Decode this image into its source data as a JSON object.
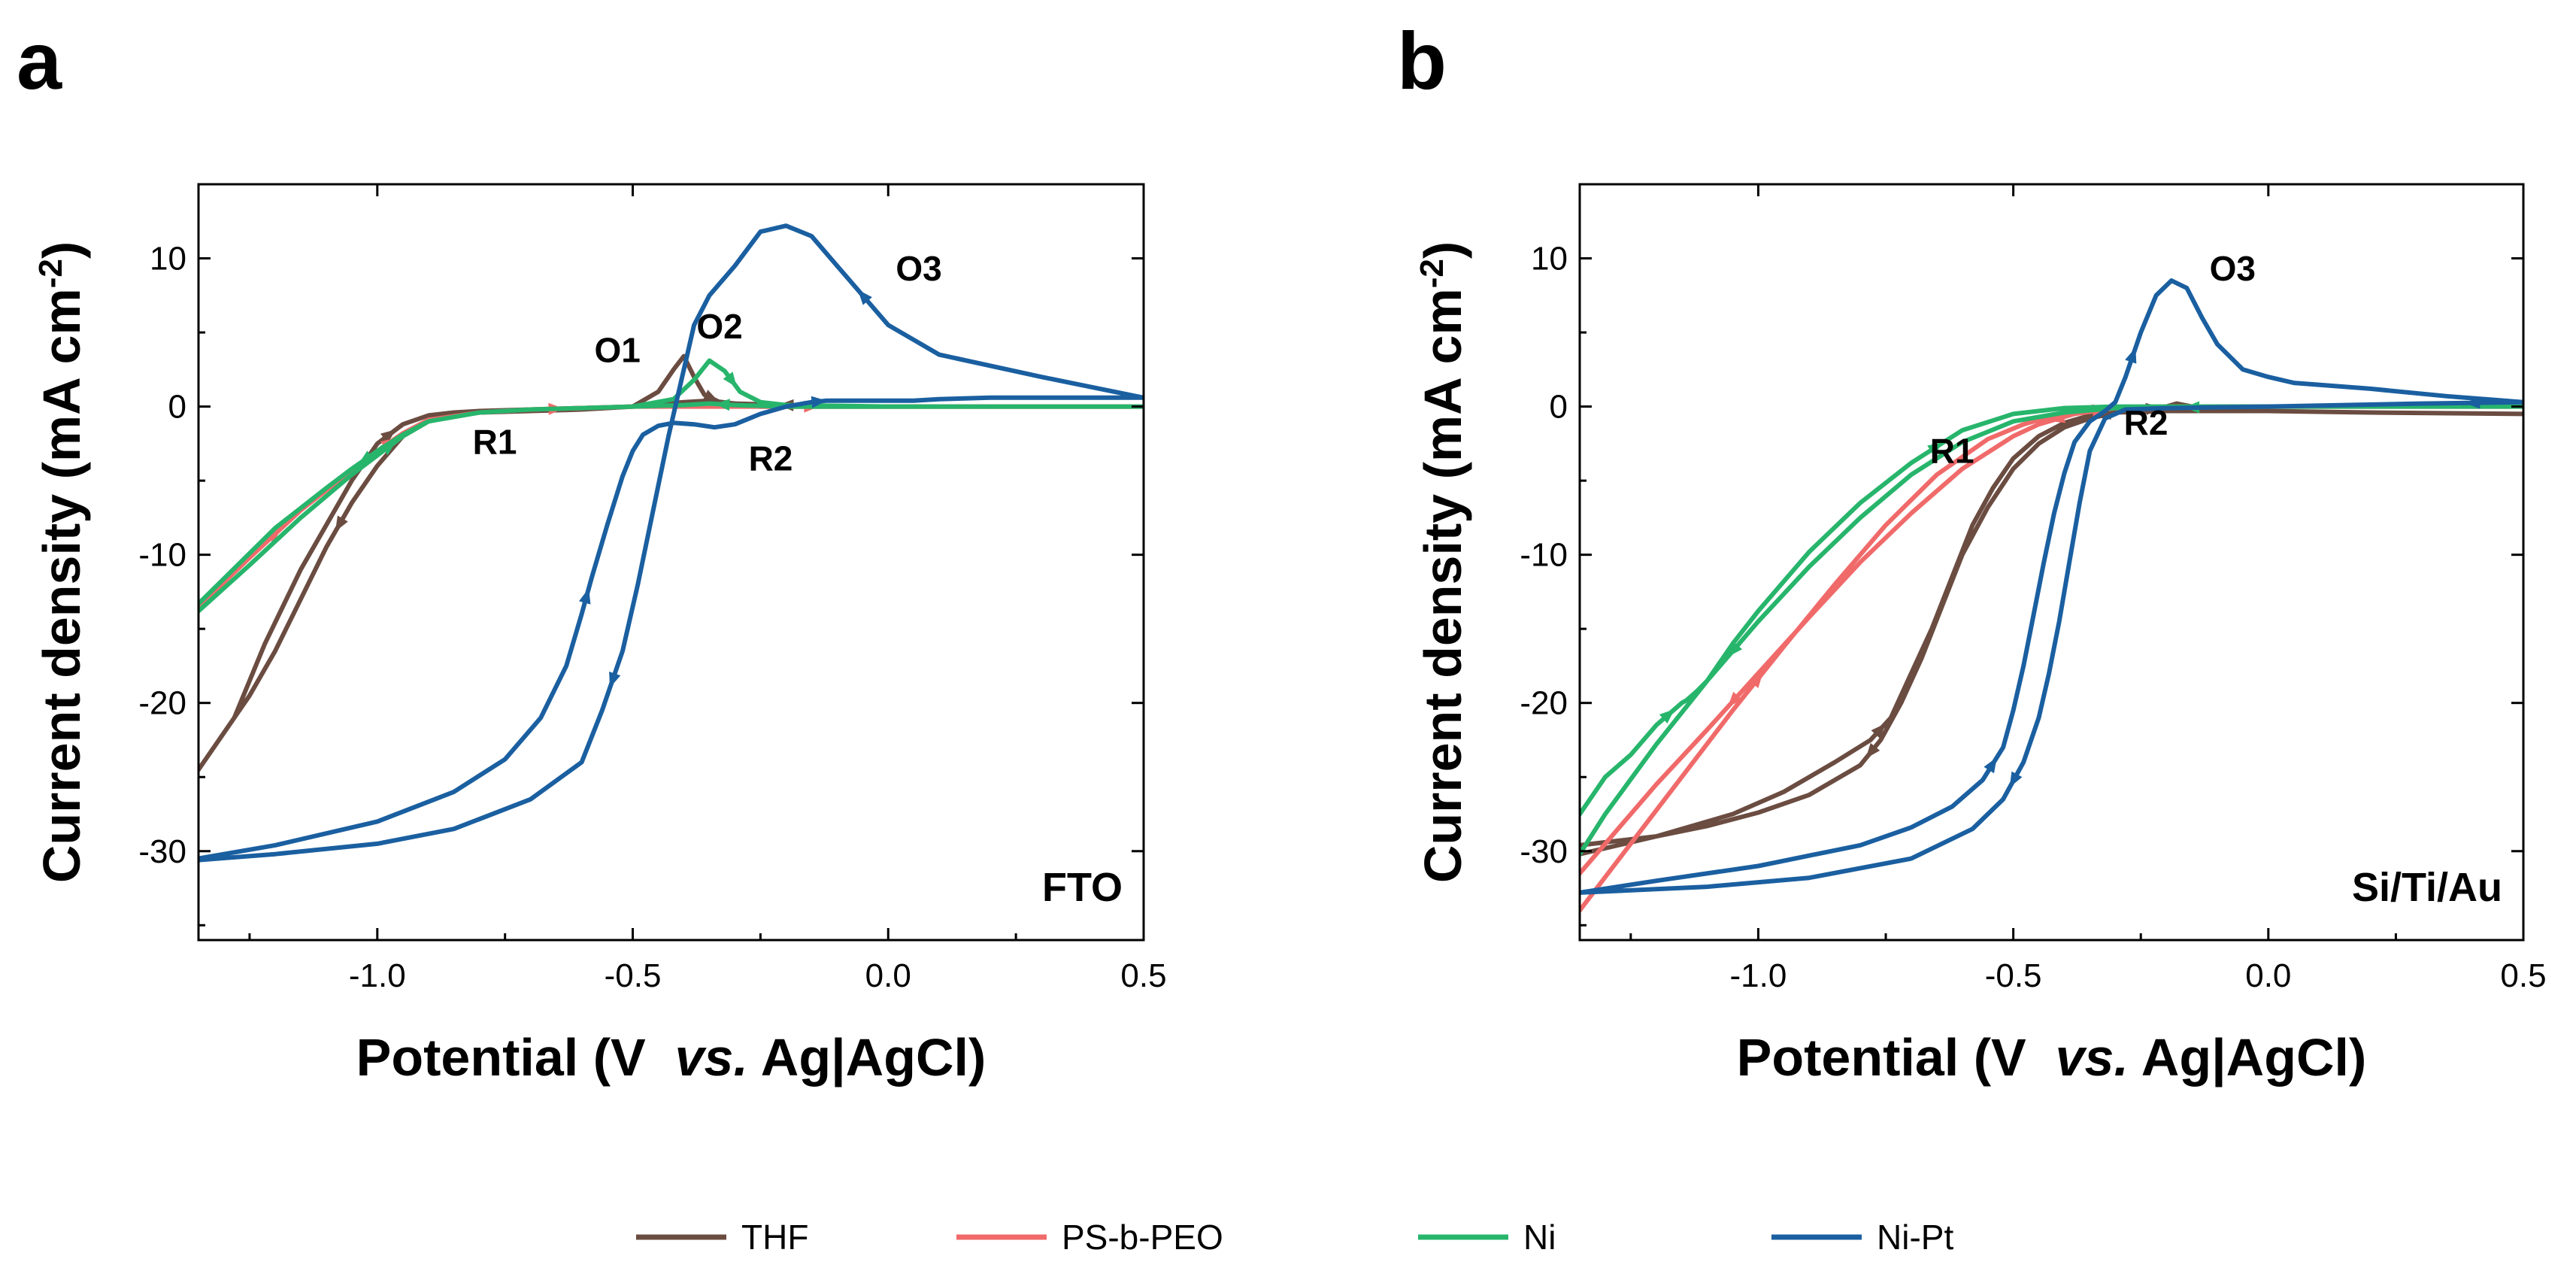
{
  "chart_data": [
    {
      "panel": "a",
      "type": "line",
      "xlabel_parts": [
        "Potential (",
        "V  ",
        "vs.",
        " Ag|AgCl)"
      ],
      "ylabel": "Current density (mA cm",
      "ylabel_sup": "-2",
      "ylabel_close": ")",
      "xlim": [
        -1.35,
        0.5
      ],
      "ylim": [
        -36,
        15
      ],
      "xticks": [
        -1.0,
        -0.5,
        0.0,
        0.5
      ],
      "xtick_labels": [
        "-1.0",
        "-0.5",
        "0.0",
        "0.5"
      ],
      "yticks": [
        10,
        0,
        -10,
        -20,
        -30
      ],
      "ytick_labels": [
        "10",
        "0",
        "-10",
        "-20",
        "-30"
      ],
      "substrate_label": "FTO",
      "annotations": [
        {
          "text": "O1",
          "x": -0.53,
          "y": 3.0
        },
        {
          "text": "O2",
          "x": -0.33,
          "y": 4.6
        },
        {
          "text": "O3",
          "x": 0.06,
          "y": 8.5
        },
        {
          "text": "R1",
          "x": -0.77,
          "y": -3.2
        },
        {
          "text": "R2",
          "x": -0.23,
          "y": -4.3
        }
      ],
      "series": [
        {
          "name": "THF",
          "color": "#6b4c41",
          "x": [
            -1.35,
            -1.28,
            -1.22,
            -1.15,
            -1.1,
            -1.05,
            -1.0,
            -0.95,
            -0.9,
            -0.85,
            -0.8,
            -0.7,
            -0.6,
            -0.5,
            -0.45,
            -0.42,
            -0.4,
            -0.38,
            -0.36,
            -0.33,
            -0.3,
            -0.25,
            -0.2,
            -0.1,
            0.0,
            0.1,
            0.3,
            0.5,
            0.3,
            0.1,
            -0.1,
            -0.3,
            -0.35,
            -0.4,
            -0.5,
            -0.6,
            -0.7,
            -0.8,
            -0.85,
            -0.9,
            -0.95,
            -1.0,
            -1.05,
            -1.1,
            -1.15,
            -1.2,
            -1.25,
            -1.3,
            -1.35
          ],
          "y": [
            -24.5,
            -21,
            -16,
            -11,
            -8,
            -5,
            -2.5,
            -1.2,
            -0.6,
            -0.4,
            -0.3,
            -0.2,
            -0.1,
            0.0,
            1.0,
            2.5,
            3.4,
            2.0,
            0.8,
            0.3,
            0.1,
            0.0,
            0.0,
            0.0,
            0.0,
            0.0,
            0.0,
            0.0,
            0.0,
            0.0,
            0.0,
            0.2,
            0.4,
            0.3,
            0.0,
            -0.2,
            -0.3,
            -0.4,
            -0.6,
            -1.0,
            -2.0,
            -4.0,
            -6.5,
            -9.5,
            -13,
            -16.5,
            -19.5,
            -22,
            -24.5
          ]
        },
        {
          "name": "PS-b-PEO",
          "color": "#f06a6a",
          "x": [
            -1.35,
            -1.25,
            -1.15,
            -1.05,
            -1.0,
            -0.95,
            -0.9,
            -0.8,
            -0.7,
            -0.6,
            -0.5,
            -0.3,
            0.0,
            0.5
          ],
          "y": [
            -13.5,
            -10.2,
            -7.0,
            -4.3,
            -3.0,
            -1.8,
            -0.9,
            -0.4,
            -0.2,
            -0.1,
            0.0,
            0.0,
            0.0,
            0.0
          ]
        },
        {
          "name": "Ni",
          "color": "#27b56c",
          "x": [
            -1.35,
            -1.25,
            -1.15,
            -1.05,
            -1.0,
            -0.95,
            -0.9,
            -0.8,
            -0.7,
            -0.6,
            -0.5,
            -0.42,
            -0.38,
            -0.35,
            -0.32,
            -0.29,
            -0.25,
            -0.2,
            0.0,
            0.2,
            0.5,
            0.3,
            0.0,
            -0.2,
            -0.3,
            -0.35,
            -0.4,
            -0.5,
            -0.6,
            -0.7,
            -0.8,
            -0.9,
            -0.95,
            -1.0,
            -1.05,
            -1.1,
            -1.2,
            -1.3,
            -1.35
          ],
          "y": [
            -13.8,
            -10.7,
            -7.5,
            -4.6,
            -3.3,
            -2.0,
            -1.0,
            -0.4,
            -0.2,
            -0.1,
            0.0,
            0.5,
            1.8,
            3.1,
            2.4,
            1.0,
            0.3,
            0.1,
            0.0,
            0.0,
            0.0,
            0.0,
            0.0,
            0.0,
            0.1,
            0.2,
            0.1,
            0.0,
            -0.1,
            -0.2,
            -0.4,
            -1.0,
            -1.9,
            -3.0,
            -4.2,
            -5.5,
            -8.2,
            -11.6,
            -13.3
          ]
        },
        {
          "name": "Ni-Pt",
          "color": "#1a5fa0",
          "x": [
            -1.35,
            -1.2,
            -1.0,
            -0.85,
            -0.75,
            -0.68,
            -0.63,
            -0.6,
            -0.58,
            -0.55,
            -0.52,
            -0.5,
            -0.48,
            -0.45,
            -0.42,
            -0.38,
            -0.34,
            -0.3,
            -0.25,
            -0.2,
            -0.15,
            -0.12,
            -0.1,
            -0.08,
            -0.05,
            0.0,
            0.05,
            0.1,
            0.2,
            0.3,
            0.4,
            0.5,
            0.3,
            0.1,
            0.0,
            -0.1,
            -0.15,
            -0.2,
            -0.25,
            -0.3,
            -0.35,
            -0.38,
            -0.4,
            -0.43,
            -0.46,
            -0.49,
            -0.52,
            -0.56,
            -0.6,
            -0.7,
            -0.85,
            -1.0,
            -1.2,
            -1.35
          ],
          "y": [
            -30.5,
            -29.6,
            -28.0,
            -26.0,
            -23.8,
            -21.0,
            -17.5,
            -14.0,
            -11.5,
            -8.0,
            -4.7,
            -3.0,
            -1.9,
            -1.3,
            -1.1,
            -1.2,
            -1.4,
            -1.2,
            -0.5,
            0.0,
            0.3,
            0.4,
            0.4,
            0.4,
            0.4,
            0.4,
            0.4,
            0.5,
            0.6,
            0.6,
            0.6,
            0.6,
            2.0,
            3.5,
            5.5,
            9.5,
            11.5,
            12.2,
            11.8,
            9.5,
            7.5,
            5.5,
            2.5,
            -2.0,
            -7.0,
            -12.0,
            -16.5,
            -20.5,
            -24.0,
            -26.5,
            -28.5,
            -29.5,
            -30.2,
            -30.6
          ]
        }
      ]
    },
    {
      "panel": "b",
      "type": "line",
      "xlabel_parts": [
        "Potential (",
        "V  ",
        "vs.",
        " Ag|AgCl)"
      ],
      "ylabel": "Current density (mA cm",
      "ylabel_sup": "-2",
      "ylabel_close": ")",
      "xlim": [
        -1.35,
        0.5
      ],
      "ylim": [
        -36,
        15
      ],
      "xticks": [
        -1.0,
        -0.5,
        0.0,
        0.5
      ],
      "xtick_labels": [
        "-1.0",
        "-0.5",
        "0.0",
        "0.5"
      ],
      "yticks": [
        10,
        0,
        -10,
        -20,
        -30
      ],
      "ytick_labels": [
        "10",
        "0",
        "-10",
        "-20",
        "-30"
      ],
      "substrate_label": "Si/Ti/Au",
      "annotations": [
        {
          "text": "O3",
          "x": -0.07,
          "y": 8.5
        },
        {
          "text": "R1",
          "x": -0.62,
          "y": -3.8
        },
        {
          "text": "R2",
          "x": -0.24,
          "y": -1.9
        }
      ],
      "series": [
        {
          "name": "THF",
          "color": "#6b4c41",
          "x": [
            -1.35,
            -1.2,
            -1.05,
            -0.95,
            -0.85,
            -0.78,
            -0.74,
            -0.7,
            -0.66,
            -0.62,
            -0.58,
            -0.54,
            -0.5,
            -0.45,
            -0.4,
            -0.35,
            -0.3,
            -0.25,
            -0.2,
            -0.18,
            -0.15,
            -0.1,
            0.0,
            0.2,
            0.5,
            0.2,
            0.0,
            -0.2,
            -0.3,
            -0.35,
            -0.4,
            -0.45,
            -0.5,
            -0.55,
            -0.6,
            -0.64,
            -0.68,
            -0.72,
            -0.76,
            -0.8,
            -0.9,
            -1.0,
            -1.1,
            -1.2,
            -1.35
          ],
          "y": [
            -30.2,
            -29.0,
            -27.5,
            -26.0,
            -24.0,
            -22.5,
            -21.0,
            -18.0,
            -15.0,
            -11.5,
            -8.0,
            -5.5,
            -3.5,
            -2.0,
            -1.1,
            -0.6,
            -0.4,
            -0.2,
            0.0,
            0.2,
            0.0,
            -0.2,
            -0.3,
            -0.4,
            -0.5,
            -0.4,
            -0.3,
            -0.3,
            -0.4,
            -0.8,
            -1.4,
            -2.5,
            -4.2,
            -6.8,
            -10.0,
            -13.5,
            -17.0,
            -20.0,
            -22.5,
            -24.2,
            -26.2,
            -27.4,
            -28.3,
            -29.0,
            -29.6
          ]
        },
        {
          "name": "PS-b-PEO",
          "color": "#f06a6a",
          "x": [
            -1.35,
            -1.25,
            -1.15,
            -1.05,
            -0.95,
            -0.85,
            -0.75,
            -0.65,
            -0.55,
            -0.48,
            -0.42,
            -0.36,
            -0.3,
            -0.2,
            0.0,
            0.5,
            0.0,
            -0.3,
            -0.38,
            -0.45,
            -0.5,
            -0.6,
            -0.7,
            -0.8,
            -0.9,
            -1.0,
            -1.1,
            -1.2,
            -1.3,
            -1.35
          ],
          "y": [
            -34.0,
            -29.5,
            -25.0,
            -20.5,
            -16.2,
            -12.0,
            -8.0,
            -4.6,
            -2.2,
            -1.2,
            -0.6,
            -0.3,
            -0.1,
            0.0,
            0.0,
            0.0,
            0.0,
            -0.1,
            -0.5,
            -1.2,
            -2.0,
            -4.2,
            -7.2,
            -10.5,
            -14.2,
            -18.0,
            -21.8,
            -25.5,
            -29.5,
            -31.5
          ]
        },
        {
          "name": "Ni",
          "color": "#27b56c",
          "x": [
            -1.35,
            -1.3,
            -1.25,
            -1.2,
            -1.15,
            -1.14,
            -1.12,
            -1.1,
            -1.05,
            -1.0,
            -0.9,
            -0.8,
            -0.7,
            -0.6,
            -0.5,
            -0.4,
            -0.3,
            -0.2,
            0.0,
            0.5,
            0.0,
            -0.3,
            -0.4,
            -0.5,
            -0.6,
            -0.7,
            -0.8,
            -0.9,
            -1.0,
            -1.1,
            -1.2,
            -1.3,
            -1.35
          ],
          "y": [
            -27.5,
            -25.0,
            -23.5,
            -21.5,
            -20.0,
            -19.8,
            -19.2,
            -18.5,
            -16.0,
            -13.8,
            -9.8,
            -6.5,
            -3.8,
            -1.6,
            -0.5,
            -0.1,
            0.0,
            0.0,
            0.0,
            0.0,
            0.0,
            -0.1,
            -0.4,
            -1.0,
            -2.4,
            -4.6,
            -7.5,
            -10.8,
            -14.5,
            -18.5,
            -22.8,
            -27.5,
            -30.2
          ]
        },
        {
          "name": "Ni-Pt",
          "color": "#1a5fa0",
          "x": [
            -1.35,
            -1.2,
            -1.0,
            -0.8,
            -0.7,
            -0.62,
            -0.56,
            -0.52,
            -0.5,
            -0.48,
            -0.46,
            -0.44,
            -0.42,
            -0.4,
            -0.38,
            -0.35,
            -0.32,
            -0.3,
            -0.28,
            -0.25,
            -0.22,
            -0.19,
            -0.16,
            -0.13,
            -0.1,
            -0.05,
            0.0,
            0.05,
            0.2,
            0.35,
            0.5,
            0.3,
            0.0,
            -0.2,
            -0.28,
            -0.32,
            -0.35,
            -0.37,
            -0.39,
            -0.41,
            -0.43,
            -0.45,
            -0.48,
            -0.52,
            -0.58,
            -0.7,
            -0.9,
            -1.1,
            -1.35
          ],
          "y": [
            -32.8,
            -32.0,
            -31.0,
            -29.6,
            -28.4,
            -27.0,
            -25.2,
            -23.0,
            -20.5,
            -17.5,
            -14.0,
            -10.5,
            -7.2,
            -4.5,
            -2.4,
            -1.0,
            -0.3,
            0.3,
            2.0,
            5.0,
            7.5,
            8.5,
            8.0,
            6.0,
            4.2,
            2.5,
            2.0,
            1.6,
            1.2,
            0.7,
            0.3,
            0.2,
            0.0,
            -0.1,
            -0.2,
            -0.8,
            -3.0,
            -6.5,
            -10.5,
            -14.5,
            -18.0,
            -21.0,
            -24.0,
            -26.5,
            -28.5,
            -30.5,
            -31.8,
            -32.4,
            -32.8
          ]
        }
      ]
    }
  ],
  "legend": [
    {
      "label": "THF",
      "color": "#6b4c41"
    },
    {
      "label": "PS-b-PEO",
      "color": "#f06a6a"
    },
    {
      "label": "Ni",
      "color": "#27b56c"
    },
    {
      "label": "Ni-Pt",
      "color": "#1a5fa0"
    }
  ]
}
